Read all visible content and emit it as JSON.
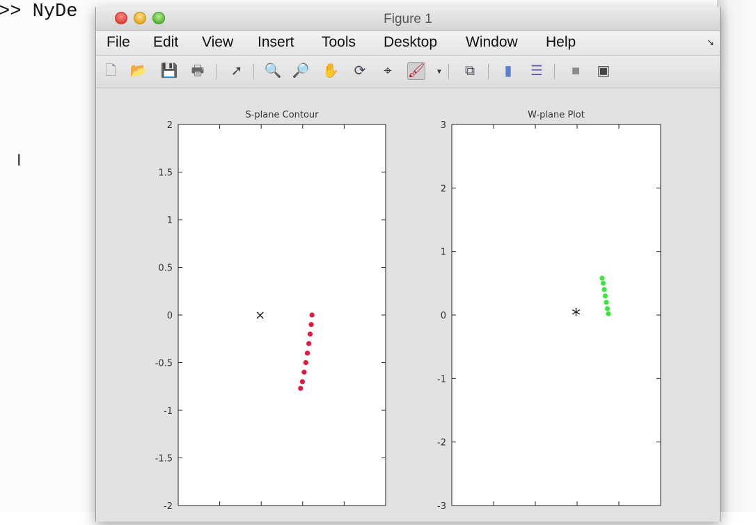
{
  "command_window": {
    "prompt_text": ">> NyDe"
  },
  "figure": {
    "title": "Figure 1",
    "menu": [
      "File",
      "Edit",
      "View",
      "Insert",
      "Tools",
      "Desktop",
      "Window",
      "Help"
    ],
    "toolbar": [
      {
        "name": "new-figure-icon",
        "glyph": "🗋"
      },
      {
        "name": "open-file-icon",
        "glyph": "📂"
      },
      {
        "name": "save-icon",
        "glyph": "💾"
      },
      {
        "name": "print-icon",
        "glyph": "🖶"
      },
      {
        "name": "edit-plot-arrow-icon",
        "glyph": "➚"
      },
      {
        "name": "zoom-in-icon",
        "glyph": "🔍"
      },
      {
        "name": "zoom-out-icon",
        "glyph": "🔎"
      },
      {
        "name": "pan-hand-icon",
        "glyph": "✋"
      },
      {
        "name": "rotate-3d-icon",
        "glyph": "⟳"
      },
      {
        "name": "data-cursor-icon",
        "glyph": "⌖"
      },
      {
        "name": "brush-icon",
        "glyph": "🖌"
      },
      {
        "name": "link-plot-icon",
        "glyph": "⧉"
      },
      {
        "name": "colorbar-icon",
        "glyph": "▮"
      },
      {
        "name": "legend-icon",
        "glyph": "☰"
      },
      {
        "name": "hide-plot-tools-icon",
        "glyph": "■"
      },
      {
        "name": "show-plot-tools-icon",
        "glyph": "▣"
      }
    ]
  },
  "chart_data": [
    {
      "type": "scatter",
      "title": "S-plane Contour",
      "xlabel": "",
      "ylabel": "",
      "ylim": [
        -2,
        2
      ],
      "y_ticks": [
        "2",
        "1.5",
        "1",
        "0.5",
        "0",
        "-0.5",
        "-1",
        "-1.5",
        "-2"
      ],
      "pole_marker": {
        "symbol": "x",
        "y": 0
      },
      "series": [
        {
          "color": "#e0173e",
          "points_y": [
            0,
            -0.1,
            -0.2,
            -0.3,
            -0.4,
            -0.5,
            -0.6,
            -0.7,
            -0.77
          ]
        }
      ],
      "grid": false
    },
    {
      "type": "scatter",
      "title": "W-plane Plot",
      "xlabel": "",
      "ylabel": "",
      "ylim": [
        -3,
        3
      ],
      "y_ticks": [
        "3",
        "2",
        "1",
        "0",
        "-1",
        "-2",
        "-3"
      ],
      "origin_marker": {
        "symbol": "*",
        "y": 0
      },
      "series": [
        {
          "color": "#3de63d",
          "points_y": [
            0.58,
            0.5,
            0.4,
            0.3,
            0.2,
            0.1,
            0.02
          ]
        }
      ],
      "grid": false
    }
  ]
}
